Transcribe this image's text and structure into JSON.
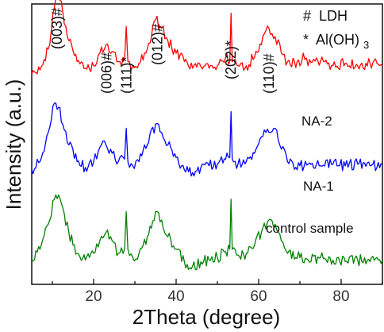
{
  "chart_data": {
    "type": "line",
    "xlabel": "2Theta (degree)",
    "ylabel": "Intensity (a.u.)",
    "xlim": [
      5,
      90
    ],
    "xticks": [
      20,
      40,
      60,
      80
    ],
    "y_ticks_shown": false,
    "grid": false,
    "legend": {
      "placement": "top-right",
      "lines": [
        {
          "symbol": "#",
          "text": "LDH",
          "sub": ""
        },
        {
          "symbol": "*",
          "text": "Al(OH)",
          "sub": "3"
        }
      ]
    },
    "annotations": [
      {
        "label": "(003)#",
        "x": 11.2
      },
      {
        "label": "(006)#",
        "x": 23.2
      },
      {
        "label": "(111)*",
        "x": 28.0
      },
      {
        "label": "(012)#",
        "x": 35.5
      },
      {
        "label": "(202)*",
        "x": 53.3
      },
      {
        "label": "(110)#",
        "x": 62.5
      }
    ],
    "series": [
      {
        "name": "NA-2",
        "color": "#ff0000",
        "offset": 2.3,
        "x": [
          5,
          7,
          9,
          10.5,
          11.5,
          12.5,
          14,
          16,
          18,
          20,
          21.5,
          23,
          24.5,
          26,
          27.5,
          27.9,
          28.3,
          29.5,
          31,
          33,
          35,
          36.5,
          38,
          40,
          42,
          44,
          46,
          48,
          50,
          52,
          53,
          53.3,
          53.6,
          55,
          57,
          59,
          61,
          62.5,
          64,
          65.5,
          67,
          70,
          70.8,
          72,
          75,
          78,
          81,
          84,
          87,
          90
        ],
        "y": [
          0.05,
          0.1,
          0.35,
          0.85,
          1.0,
          0.8,
          0.45,
          0.2,
          0.12,
          0.15,
          0.3,
          0.4,
          0.32,
          0.2,
          0.22,
          0.62,
          0.2,
          0.15,
          0.18,
          0.35,
          0.7,
          0.6,
          0.45,
          0.3,
          0.2,
          0.12,
          0.14,
          0.12,
          0.15,
          0.25,
          0.2,
          0.78,
          0.2,
          0.15,
          0.15,
          0.25,
          0.5,
          0.6,
          0.5,
          0.3,
          0.2,
          0.15,
          0.3,
          0.15,
          0.2,
          0.15,
          0.18,
          0.15,
          0.18,
          0.15
        ]
      },
      {
        "name": "NA-1",
        "color": "#0000ff",
        "offset": 1.15,
        "x": [
          5,
          7,
          9,
          10.5,
          11.5,
          12.5,
          14,
          16,
          18,
          20,
          21.5,
          23,
          24.5,
          26,
          27.5,
          27.9,
          28.3,
          29.5,
          31,
          33,
          35,
          36.5,
          38,
          40,
          42,
          44,
          46,
          48,
          50,
          52,
          53,
          53.3,
          53.6,
          55,
          57,
          59,
          61,
          62.5,
          64,
          65.5,
          67,
          70,
          72,
          75,
          78,
          81,
          84,
          87,
          90
        ],
        "y": [
          0.05,
          0.15,
          0.5,
          0.85,
          0.8,
          0.6,
          0.35,
          0.15,
          0.08,
          0.15,
          0.32,
          0.35,
          0.25,
          0.15,
          0.18,
          0.55,
          0.15,
          0.1,
          0.15,
          0.35,
          0.6,
          0.5,
          0.35,
          0.2,
          0.05,
          0.02,
          0.08,
          0.1,
          0.12,
          0.18,
          0.2,
          0.75,
          0.18,
          0.12,
          0.15,
          0.25,
          0.45,
          0.5,
          0.55,
          0.3,
          0.15,
          0.1,
          0.12,
          0.1,
          0.12,
          0.1,
          0.12,
          0.1,
          0.12
        ]
      },
      {
        "name": "control sample",
        "color": "#008000",
        "offset": 0.0,
        "x": [
          5,
          7,
          9,
          10.5,
          11.5,
          12.5,
          14,
          16,
          18,
          20,
          21.5,
          23,
          24.5,
          26,
          27.5,
          27.9,
          28.3,
          29.5,
          31,
          33,
          35,
          36.5,
          38,
          40,
          42,
          44,
          46,
          48,
          50,
          52,
          53,
          53.3,
          53.6,
          55,
          57,
          59,
          61,
          62.5,
          64,
          65.5,
          67,
          70,
          72,
          75,
          78,
          81,
          84,
          87,
          90
        ],
        "y": [
          0.1,
          0.25,
          0.55,
          0.85,
          0.9,
          0.75,
          0.45,
          0.2,
          0.12,
          0.2,
          0.35,
          0.45,
          0.35,
          0.2,
          0.25,
          0.7,
          0.25,
          0.15,
          0.2,
          0.4,
          0.7,
          0.6,
          0.4,
          0.25,
          0.1,
          0.05,
          0.1,
          0.12,
          0.15,
          0.22,
          0.25,
          0.85,
          0.25,
          0.18,
          0.2,
          0.3,
          0.5,
          0.6,
          0.55,
          0.35,
          0.2,
          0.15,
          0.12,
          0.15,
          0.12,
          0.1,
          0.12,
          0.1,
          0.12
        ]
      }
    ]
  }
}
